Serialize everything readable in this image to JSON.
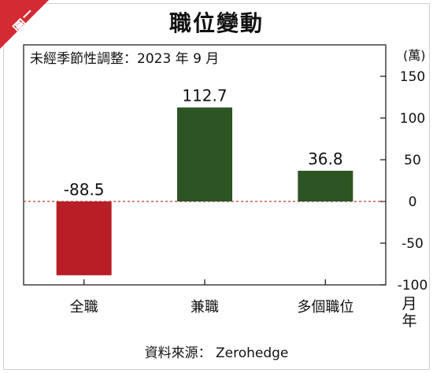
{
  "tag": "圖二",
  "title": "職位變動",
  "source": "資料來源： Zerohedge",
  "colors": {
    "negative": "#b81e25",
    "positive": "#2d5423",
    "zero_line": "#c0392b",
    "tag": "#d42a34"
  },
  "chart_data": {
    "type": "bar",
    "subtitle": "未經季節性調整：2023 年 9 月",
    "unit": "(萬)",
    "xlabel": "月年",
    "categories": [
      "全職",
      "兼職",
      "多個職位"
    ],
    "values": [
      -88.5,
      112.7,
      36.8
    ],
    "value_labels": [
      "-88.5",
      "112.7",
      "36.8"
    ],
    "ylim": [
      -100,
      150
    ],
    "yticks": [
      150,
      100,
      50,
      0,
      -50,
      -100
    ],
    "y_axis_position": "right",
    "grid": false
  }
}
